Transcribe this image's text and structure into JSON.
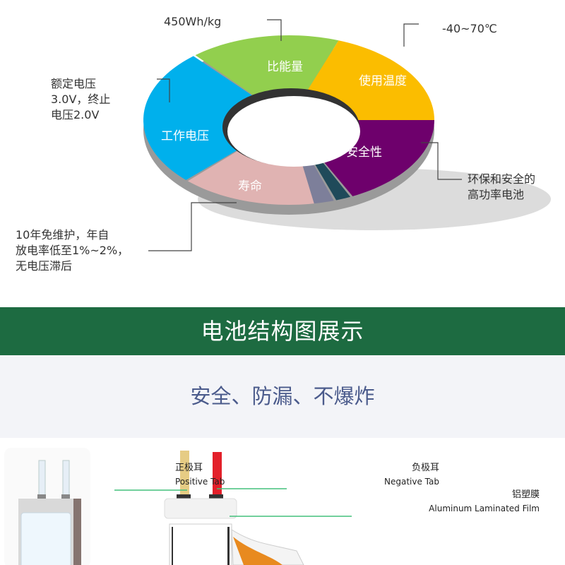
{
  "ring": {
    "segments": [
      {
        "label": "比能量",
        "color": "#92cf4e"
      },
      {
        "label": "使用温度",
        "color": "#fbbd00"
      },
      {
        "label": "安全性",
        "color": "#6e006c"
      },
      {
        "label": "寿命",
        "color": "#e0b3b2"
      },
      {
        "label": "工作电压",
        "color": "#00b0ec"
      }
    ]
  },
  "notes": {
    "energy": "450Wh/kg",
    "temperature": "-40~70℃",
    "safety": "环保和安全的\n高功率电池",
    "life": "10年免维护，年自\n放电率低至1%~2%，\n无电压滞后",
    "voltage": "额定电压\n3.0V，终止\n电压2.0V"
  },
  "banner": {
    "title": "电池结构图展示"
  },
  "subtitle": "安全、防漏、不爆炸",
  "structure": {
    "positive_cn": "正极耳",
    "positive_en": "Positive Tab",
    "negative_cn": "负极耳",
    "negative_en": "Negative Tab",
    "film_cn": "铝塑膜",
    "film_en": "Aluminum Laminated Film"
  }
}
